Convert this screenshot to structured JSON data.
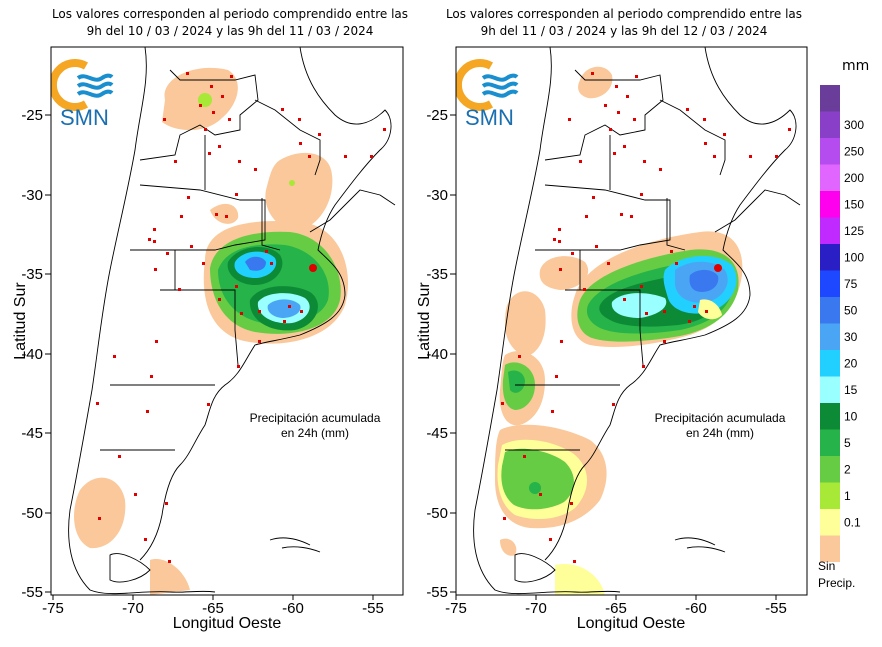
{
  "maps": [
    {
      "caption_line1": "Los valores corresponden al periodo comprendido entre las",
      "caption_line2": "9h del 10 / 03 / 2024  y las 9h del 11 / 03 / 2024",
      "annotation_line1": "Precipitación acumulada",
      "annotation_line2": "en 24h (mm)",
      "logo_text": "SMN"
    },
    {
      "caption_line1": "Los valores corresponden al periodo comprendido entre las",
      "caption_line2": "9h del 11 / 03 / 2024  y las 9h del 12 / 03 / 2024",
      "annotation_line1": "Precipitación acumulada",
      "annotation_line2": "en 24h (mm)",
      "logo_text": "SMN"
    }
  ],
  "axes": {
    "ylabel": "Latitud Sur",
    "xlabel": "Longitud Oeste",
    "lat_ticks": [
      "-25",
      "-30",
      "-35",
      "-40",
      "-45",
      "-50",
      "-55"
    ],
    "lon_ticks": [
      "-75",
      "-70",
      "-65",
      "-60",
      "-55"
    ]
  },
  "legend": {
    "unit": "mm",
    "no_precip_line1": "Sin",
    "no_precip_line2": "Precip.",
    "bins": [
      {
        "label": "",
        "color": "#6a3d9a"
      },
      {
        "label": "300",
        "color": "#8a3fc8"
      },
      {
        "label": "250",
        "color": "#b44cf0"
      },
      {
        "label": "200",
        "color": "#e066ff"
      },
      {
        "label": "150",
        "color": "#ff00ee"
      },
      {
        "label": "125",
        "color": "#c02aff"
      },
      {
        "label": "100",
        "color": "#2a1fc4"
      },
      {
        "label": "75",
        "color": "#1e48ff"
      },
      {
        "label": "50",
        "color": "#3a78f0"
      },
      {
        "label": "30",
        "color": "#4aa6f5"
      },
      {
        "label": "20",
        "color": "#22d0ff"
      },
      {
        "label": "15",
        "color": "#99ffff"
      },
      {
        "label": "10",
        "color": "#0d8a36"
      },
      {
        "label": "5",
        "color": "#26b34a"
      },
      {
        "label": "2",
        "color": "#66cc44"
      },
      {
        "label": "1",
        "color": "#a8e836"
      },
      {
        "label": "0.1",
        "color": "#ffff99"
      },
      {
        "label": "",
        "color": "#fac89a"
      }
    ]
  },
  "colors": {
    "station": "#e00000",
    "border": "#000000",
    "logo_orange": "#f5a623",
    "logo_blue": "#1a8fd0"
  }
}
